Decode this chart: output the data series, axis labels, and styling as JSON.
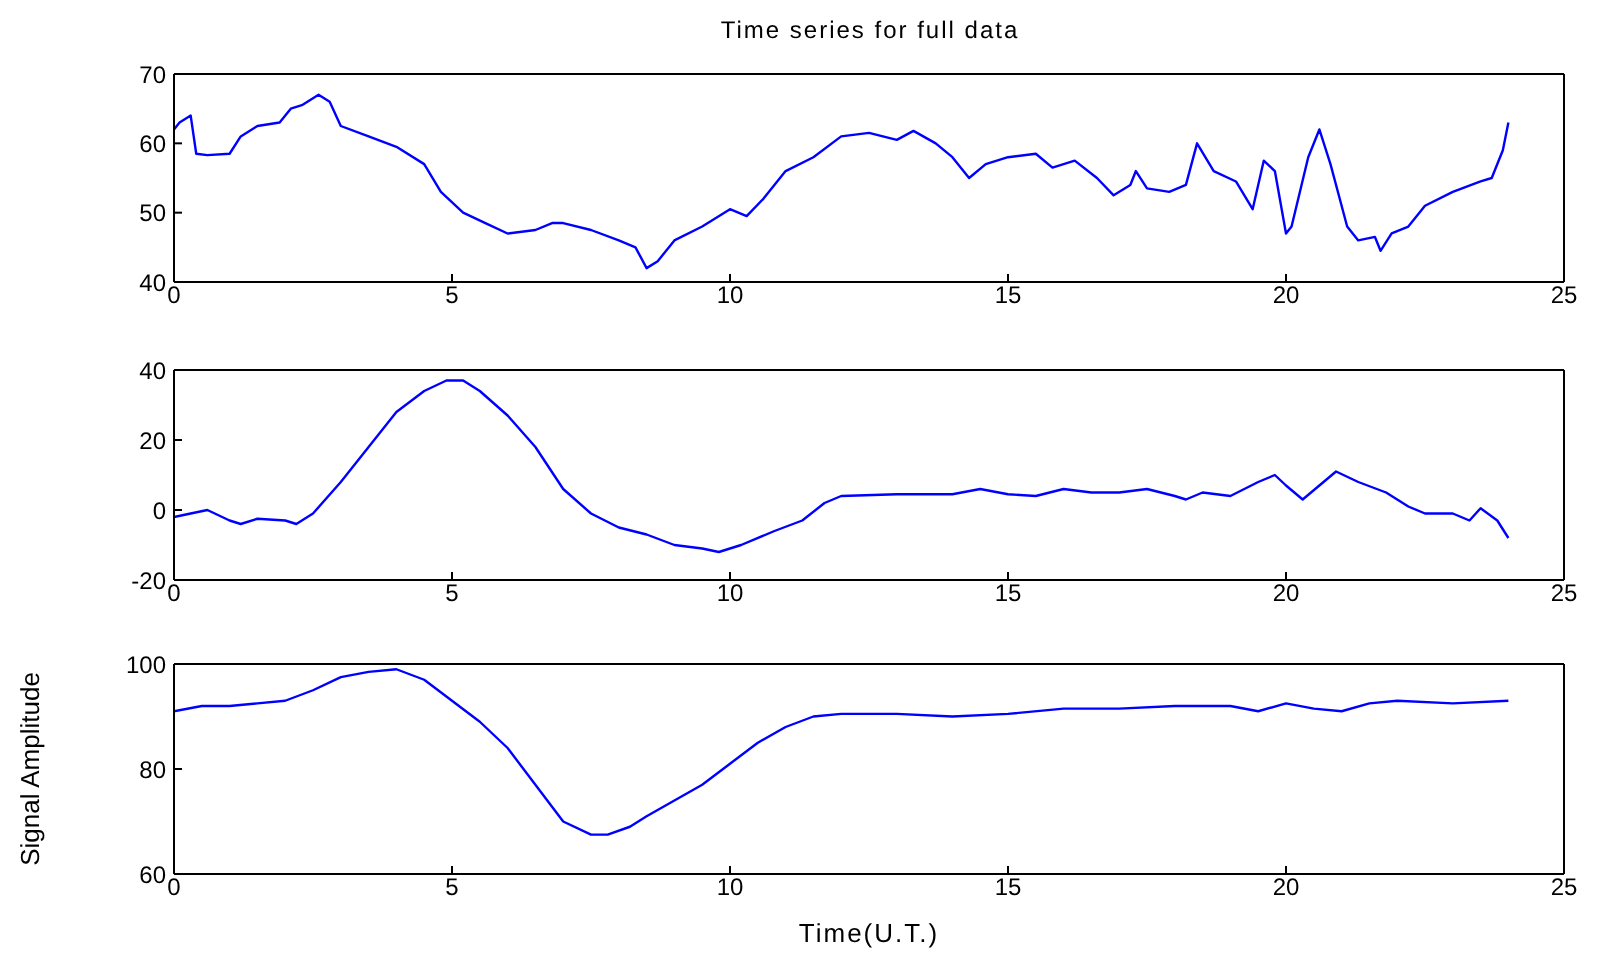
{
  "chart_data": [
    {
      "type": "line",
      "title": "Time series for full data",
      "x": [
        0,
        0.1,
        0.3,
        0.4,
        0.6,
        1,
        1.2,
        1.5,
        1.9,
        2.1,
        2.3,
        2.6,
        2.8,
        3,
        3.5,
        4,
        4.5,
        4.8,
        5.2,
        5.6,
        6,
        6.5,
        6.8,
        7,
        7.5,
        8,
        8.3,
        8.5,
        8.7,
        9,
        9.5,
        10,
        10.3,
        10.6,
        11,
        11.5,
        12,
        12.5,
        13,
        13.3,
        13.7,
        14,
        14.3,
        14.6,
        15,
        15.5,
        15.8,
        16.2,
        16.6,
        16.9,
        17.2,
        17.3,
        17.5,
        17.9,
        18.2,
        18.4,
        18.7,
        19.1,
        19.4,
        19.6,
        19.8,
        20,
        20.1,
        20.4,
        20.6,
        20.8,
        21.1,
        21.3,
        21.6,
        21.7,
        21.9,
        22.2,
        22.5,
        23,
        23.5,
        23.7,
        23.9,
        24
      ],
      "series": [
        {
          "color": "#0000ff",
          "values": [
            62,
            63,
            64,
            58.5,
            58.3,
            58.5,
            61,
            62.5,
            63,
            65,
            65.5,
            67,
            66,
            62.5,
            61,
            59.5,
            57,
            53,
            50,
            48.5,
            47,
            47.5,
            48.5,
            48.5,
            47.5,
            46,
            45,
            42,
            43,
            46,
            48,
            50.5,
            49.5,
            52,
            56,
            58,
            61,
            61.5,
            60.5,
            61.8,
            60,
            58,
            55,
            57,
            58,
            58.5,
            56.5,
            57.5,
            55,
            52.5,
            54,
            56,
            53.5,
            53,
            54,
            60,
            56,
            54.5,
            50.5,
            57.5,
            56,
            47,
            48,
            58,
            62,
            57,
            48,
            46,
            46.5,
            44.5,
            47,
            48,
            51,
            53,
            54.5,
            55,
            59,
            63
          ]
        }
      ],
      "xlim": [
        0,
        25
      ],
      "xticks": [
        0,
        5,
        10,
        15,
        20,
        25
      ],
      "ylim": [
        40,
        70
      ],
      "yticks": [
        40,
        50,
        60,
        70
      ],
      "grid": false,
      "legend": false,
      "marker": "none",
      "line_style": "solid"
    },
    {
      "type": "line",
      "x": [
        0,
        0.3,
        0.6,
        1,
        1.2,
        1.5,
        2,
        2.2,
        2.5,
        3,
        3.5,
        4,
        4.5,
        4.9,
        5.2,
        5.5,
        6,
        6.5,
        7,
        7.5,
        8,
        8.5,
        9,
        9.5,
        9.8,
        10.2,
        10.8,
        11.3,
        11.7,
        12,
        13,
        14,
        14.5,
        15,
        15.5,
        16,
        16.5,
        17,
        17.5,
        18,
        18.2,
        18.5,
        19,
        19.5,
        19.8,
        20,
        20.3,
        20.6,
        20.9,
        21.3,
        21.8,
        22.2,
        22.5,
        23,
        23.3,
        23.5,
        23.8,
        24
      ],
      "series": [
        {
          "color": "#0000ff",
          "values": [
            -2,
            -1,
            0,
            -3,
            -4,
            -2.5,
            -3,
            -4,
            -1,
            8,
            18,
            28,
            34,
            37,
            37,
            34,
            27,
            18,
            6,
            -1,
            -5,
            -7,
            -10,
            -11,
            -12,
            -10,
            -6,
            -3,
            2,
            4,
            4.5,
            4.5,
            6,
            4.5,
            4,
            6,
            5,
            5,
            6,
            4,
            3,
            5,
            4,
            8,
            10,
            7,
            3,
            7,
            11,
            8,
            5,
            1,
            -1,
            -1,
            -3,
            0.5,
            -3,
            -8
          ]
        }
      ],
      "xlim": [
        0,
        25
      ],
      "xticks": [
        0,
        5,
        10,
        15,
        20,
        25
      ],
      "ylim": [
        -20,
        40
      ],
      "yticks": [
        -20,
        0,
        20,
        40
      ],
      "grid": false,
      "legend": false,
      "marker": "none",
      "line_style": "solid"
    },
    {
      "type": "line",
      "xlabel": "Time(U.T.)",
      "ylabel": "Signal Amplitude",
      "x": [
        0,
        0.5,
        1,
        1.5,
        2,
        2.5,
        3,
        3.5,
        4,
        4.5,
        5,
        5.5,
        6,
        6.5,
        7,
        7.5,
        7.8,
        8.2,
        8.5,
        9,
        9.5,
        10,
        10.5,
        11,
        11.5,
        12,
        13,
        14,
        15,
        16,
        17,
        18,
        19,
        19.5,
        20,
        20.5,
        21,
        21.5,
        22,
        23,
        24
      ],
      "series": [
        {
          "color": "#0000ff",
          "values": [
            91,
            92,
            92,
            92.5,
            93,
            95,
            97.5,
            98.5,
            99,
            97,
            93,
            89,
            84,
            77,
            70,
            67.5,
            67.5,
            69,
            71,
            74,
            77,
            81,
            85,
            88,
            90,
            90.5,
            90.5,
            90,
            90.5,
            91.5,
            91.5,
            92,
            92,
            91,
            92.5,
            91.5,
            91,
            92.5,
            93,
            92.5,
            93
          ]
        }
      ],
      "xlim": [
        0,
        25
      ],
      "xticks": [
        0,
        5,
        10,
        15,
        20,
        25
      ],
      "ylim": [
        60,
        100
      ],
      "yticks": [
        60,
        80,
        100
      ],
      "grid": false,
      "legend": false,
      "marker": "none",
      "line_style": "solid"
    }
  ]
}
